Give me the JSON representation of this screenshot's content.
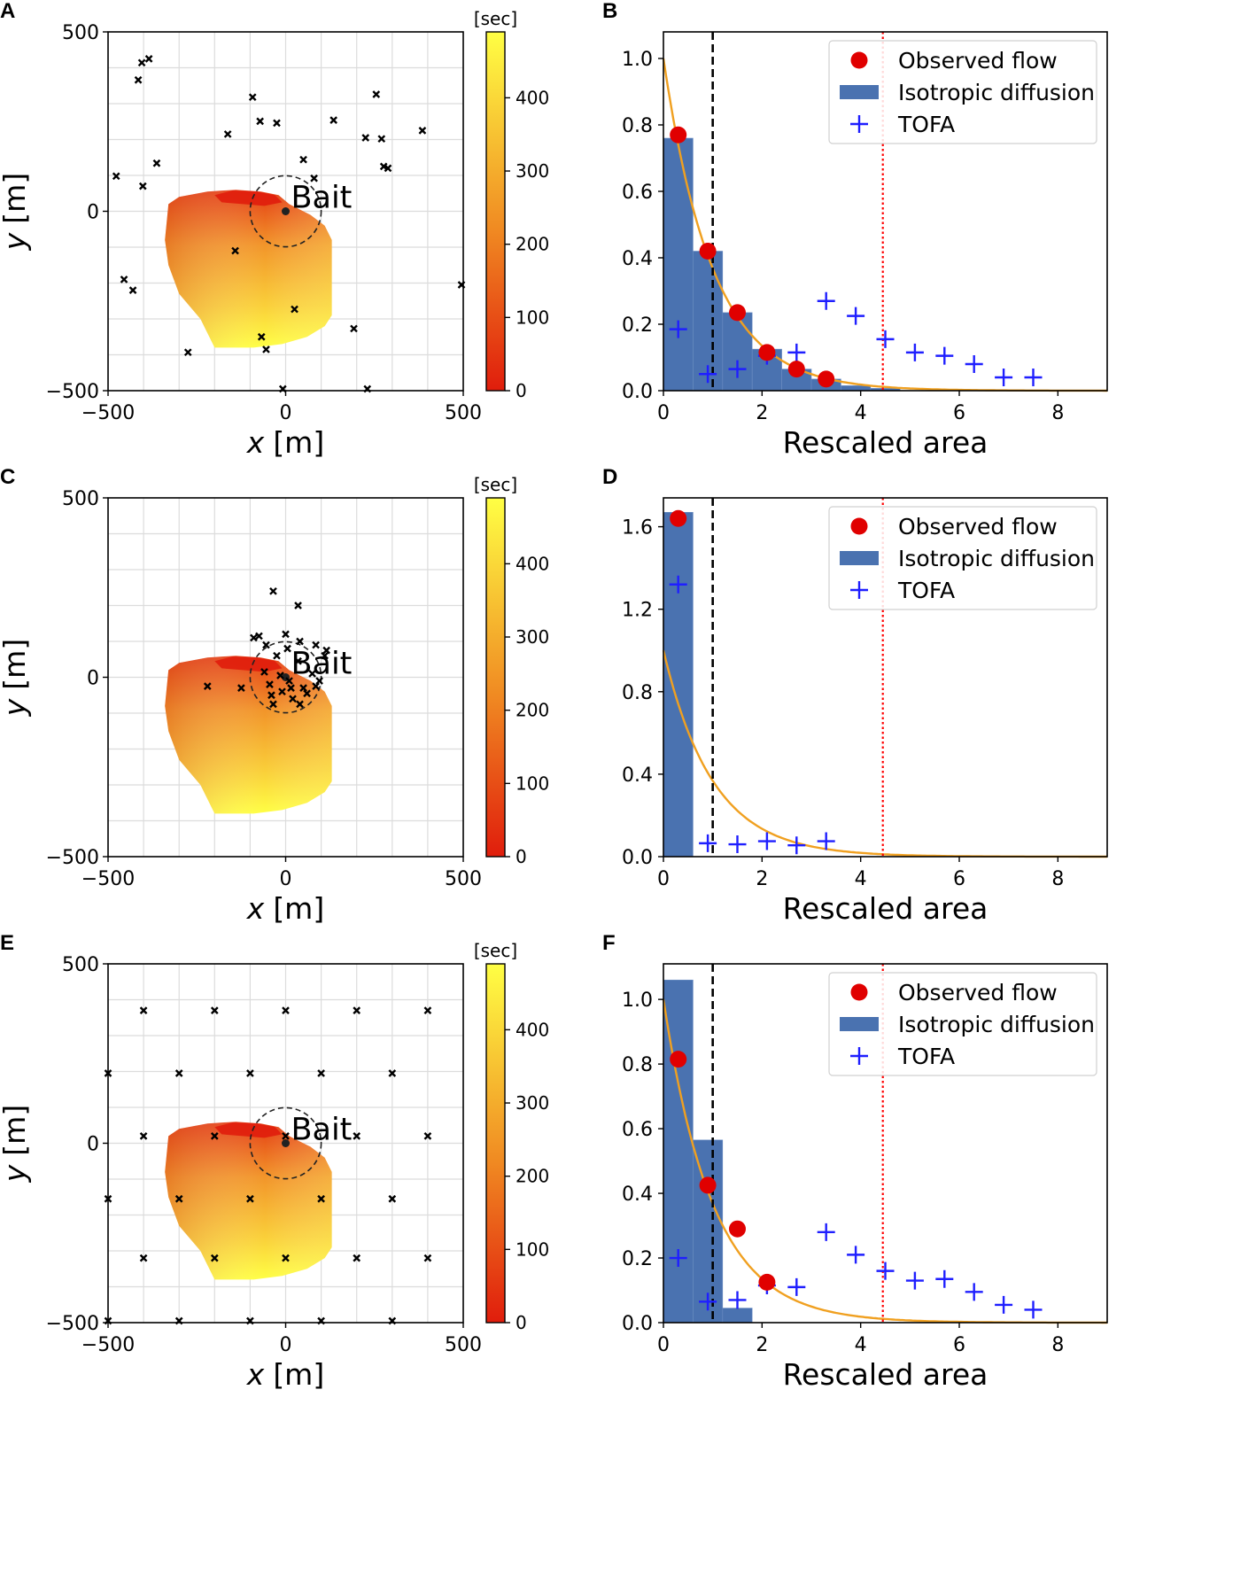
{
  "colors": {
    "observed": "#e00000",
    "histogram": "#4a72b0",
    "tofa": "#1f1fff",
    "curve": "#f0a020",
    "black_line": "#000000",
    "red_line": "#ff0000",
    "map_low": "#e01d0c",
    "map_mid": "#f08a22",
    "map_high": "#ffff44"
  },
  "chart_data": [
    {
      "panel": "A",
      "type": "scatter-map",
      "xlabel_sym": "x",
      "xlabel_unit": "[m]",
      "ylabel_sym": "y",
      "ylabel_unit": "[m]",
      "xlim": [
        -500,
        500
      ],
      "ylim": [
        -500,
        500
      ],
      "xticks": [
        "−500",
        "0",
        "500"
      ],
      "yticks": [
        "500",
        "0",
        "−500"
      ],
      "bait_label": "Bait",
      "bait_radius": 100,
      "colorbar": {
        "unit": "[sec]",
        "range": [
          0,
          490
        ],
        "ticks": [
          "400",
          "300",
          "200",
          "100",
          "0"
        ]
      },
      "markers": [
        [
          -477,
          98
        ],
        [
          -455,
          -190
        ],
        [
          -430,
          -220
        ],
        [
          -415,
          366
        ],
        [
          -405,
          414
        ],
        [
          -402,
          70
        ],
        [
          -385,
          425
        ],
        [
          -363,
          134
        ],
        [
          -275,
          -393
        ],
        [
          -163,
          215
        ],
        [
          -142,
          -110
        ],
        [
          -93,
          318
        ],
        [
          -72,
          251
        ],
        [
          -68,
          -350
        ],
        [
          -55,
          -385
        ],
        [
          -25,
          246
        ],
        [
          -8,
          -495
        ],
        [
          25,
          -273
        ],
        [
          50,
          144
        ],
        [
          80,
          92
        ],
        [
          135,
          254
        ],
        [
          192,
          -327
        ],
        [
          225,
          205
        ],
        [
          230,
          -495
        ],
        [
          255,
          326
        ],
        [
          270,
          202
        ],
        [
          276,
          125
        ],
        [
          288,
          120
        ],
        [
          385,
          225
        ],
        [
          495,
          -205
        ]
      ]
    },
    {
      "panel": "B",
      "type": "bar-line-scatter",
      "xlabel": "Rescaled area",
      "xlim": [
        0,
        9
      ],
      "ylim": [
        0,
        1.08
      ],
      "xticks": [
        0,
        2,
        4,
        6,
        8
      ],
      "yticks": [
        0,
        0.2,
        0.4,
        0.6,
        0.8,
        1.0
      ],
      "ytick_labels": [
        "0.0",
        "0.2",
        "0.4",
        "0.6",
        "0.8",
        "1.0"
      ],
      "vline_black": 1.0,
      "vline_red": 4.45,
      "bin_width": 0.6,
      "bars": [
        0.76,
        0.42,
        0.235,
        0.125,
        0.065,
        0.035,
        0.015,
        0.007
      ],
      "observed": [
        [
          0.3,
          0.77
        ],
        [
          0.9,
          0.42
        ],
        [
          1.5,
          0.235
        ],
        [
          2.1,
          0.115
        ],
        [
          2.7,
          0.065
        ],
        [
          3.3,
          0.035
        ]
      ],
      "tofa": [
        [
          0.3,
          0.185
        ],
        [
          0.9,
          0.05
        ],
        [
          1.5,
          0.065
        ],
        [
          2.1,
          0.105
        ],
        [
          2.7,
          0.115
        ],
        [
          3.3,
          0.27
        ],
        [
          3.9,
          0.225
        ],
        [
          4.5,
          0.155
        ],
        [
          5.1,
          0.115
        ],
        [
          5.7,
          0.105
        ],
        [
          6.3,
          0.08
        ],
        [
          6.9,
          0.04
        ],
        [
          7.5,
          0.04
        ]
      ],
      "legend": [
        "Observed flow",
        "Isotropic diffusion",
        "TOFA"
      ]
    },
    {
      "panel": "C",
      "type": "scatter-map",
      "xlabel_sym": "x",
      "xlabel_unit": "[m]",
      "ylabel_sym": "y",
      "ylabel_unit": "[m]",
      "xlim": [
        -500,
        500
      ],
      "ylim": [
        -500,
        500
      ],
      "xticks": [
        "−500",
        "0",
        "500"
      ],
      "yticks": [
        "500",
        "0",
        "−500"
      ],
      "bait_label": "Bait",
      "bait_radius": 100,
      "colorbar": {
        "unit": "[sec]",
        "range": [
          0,
          490
        ],
        "ticks": [
          "400",
          "300",
          "200",
          "100",
          "0"
        ]
      },
      "markers": [
        [
          -220,
          -25
        ],
        [
          -125,
          -30
        ],
        [
          -90,
          110
        ],
        [
          -75,
          115
        ],
        [
          -55,
          90
        ],
        [
          -60,
          15
        ],
        [
          -45,
          -20
        ],
        [
          -40,
          -50
        ],
        [
          -35,
          -75
        ],
        [
          -25,
          60
        ],
        [
          -15,
          5
        ],
        [
          -10,
          -40
        ],
        [
          0,
          120
        ],
        [
          5,
          80
        ],
        [
          10,
          -10
        ],
        [
          15,
          -30
        ],
        [
          20,
          -60
        ],
        [
          35,
          45
        ],
        [
          40,
          100
        ],
        [
          40,
          -75
        ],
        [
          50,
          -30
        ],
        [
          60,
          -45
        ],
        [
          75,
          10
        ],
        [
          85,
          90
        ],
        [
          95,
          -10
        ],
        [
          110,
          60
        ],
        [
          115,
          75
        ],
        [
          85,
          -25
        ],
        [
          -35,
          240
        ],
        [
          35,
          200
        ]
      ]
    },
    {
      "panel": "D",
      "type": "bar-line-scatter",
      "xlabel": "Rescaled area",
      "xlim": [
        0,
        9
      ],
      "ylim": [
        0,
        1.74
      ],
      "xticks": [
        0,
        2,
        4,
        6,
        8
      ],
      "yticks": [
        0,
        0.4,
        0.8,
        1.2,
        1.6
      ],
      "ytick_labels": [
        "0.0",
        "0.4",
        "0.8",
        "1.2",
        "1.6"
      ],
      "vline_black": 1.0,
      "vline_red": 4.45,
      "bin_width": 0.6,
      "bars": [
        1.67
      ],
      "observed": [
        [
          0.3,
          1.64
        ]
      ],
      "tofa": [
        [
          0.3,
          1.32
        ],
        [
          0.9,
          0.065
        ],
        [
          1.5,
          0.06
        ],
        [
          2.1,
          0.075
        ],
        [
          2.7,
          0.055
        ],
        [
          3.3,
          0.075
        ]
      ],
      "legend": [
        "Observed flow",
        "Isotropic diffusion",
        "TOFA"
      ]
    },
    {
      "panel": "E",
      "type": "scatter-map",
      "xlabel_sym": "x",
      "xlabel_unit": "[m]",
      "ylabel_sym": "y",
      "ylabel_unit": "[m]",
      "xlim": [
        -500,
        500
      ],
      "ylim": [
        -500,
        500
      ],
      "xticks": [
        "−500",
        "0",
        "500"
      ],
      "yticks": [
        "500",
        "0",
        "−500"
      ],
      "bait_label": "Bait",
      "bait_radius": 100,
      "colorbar": {
        "unit": "[sec]",
        "range": [
          0,
          490
        ],
        "ticks": [
          "400",
          "300",
          "200",
          "100",
          "0"
        ]
      },
      "markers": [
        [
          -400,
          370
        ],
        [
          -200,
          370
        ],
        [
          0,
          370
        ],
        [
          200,
          370
        ],
        [
          400,
          370
        ],
        [
          -500,
          195
        ],
        [
          -300,
          195
        ],
        [
          -100,
          195
        ],
        [
          100,
          195
        ],
        [
          300,
          195
        ],
        [
          -400,
          20
        ],
        [
          -200,
          20
        ],
        [
          0,
          20
        ],
        [
          200,
          20
        ],
        [
          400,
          20
        ],
        [
          -500,
          -155
        ],
        [
          -300,
          -155
        ],
        [
          -100,
          -155
        ],
        [
          100,
          -155
        ],
        [
          300,
          -155
        ],
        [
          -400,
          -320
        ],
        [
          -200,
          -320
        ],
        [
          0,
          -320
        ],
        [
          200,
          -320
        ],
        [
          400,
          -320
        ],
        [
          -500,
          -495
        ],
        [
          -300,
          -495
        ],
        [
          -100,
          -495
        ],
        [
          100,
          -495
        ],
        [
          300,
          -495
        ]
      ]
    },
    {
      "panel": "F",
      "type": "bar-line-scatter",
      "xlabel": "Rescaled area",
      "xlim": [
        0,
        9
      ],
      "ylim": [
        0,
        1.11
      ],
      "xticks": [
        0,
        2,
        4,
        6,
        8
      ],
      "yticks": [
        0,
        0.2,
        0.4,
        0.6,
        0.8,
        1.0
      ],
      "ytick_labels": [
        "0.0",
        "0.2",
        "0.4",
        "0.6",
        "0.8",
        "1.0"
      ],
      "vline_black": 1.0,
      "vline_red": 4.45,
      "bin_width": 0.6,
      "bars": [
        1.06,
        0.565,
        0.045
      ],
      "observed": [
        [
          0.3,
          0.815
        ],
        [
          0.9,
          0.425
        ],
        [
          1.5,
          0.29
        ],
        [
          2.1,
          0.125
        ]
      ],
      "tofa": [
        [
          0.3,
          0.2
        ],
        [
          0.9,
          0.065
        ],
        [
          1.5,
          0.07
        ],
        [
          2.1,
          0.115
        ],
        [
          2.7,
          0.11
        ],
        [
          3.3,
          0.28
        ],
        [
          3.9,
          0.21
        ],
        [
          4.5,
          0.16
        ],
        [
          5.1,
          0.13
        ],
        [
          5.7,
          0.135
        ],
        [
          6.3,
          0.095
        ],
        [
          6.9,
          0.055
        ],
        [
          7.5,
          0.04
        ]
      ],
      "legend": [
        "Observed flow",
        "Isotropic diffusion",
        "TOFA"
      ]
    }
  ]
}
